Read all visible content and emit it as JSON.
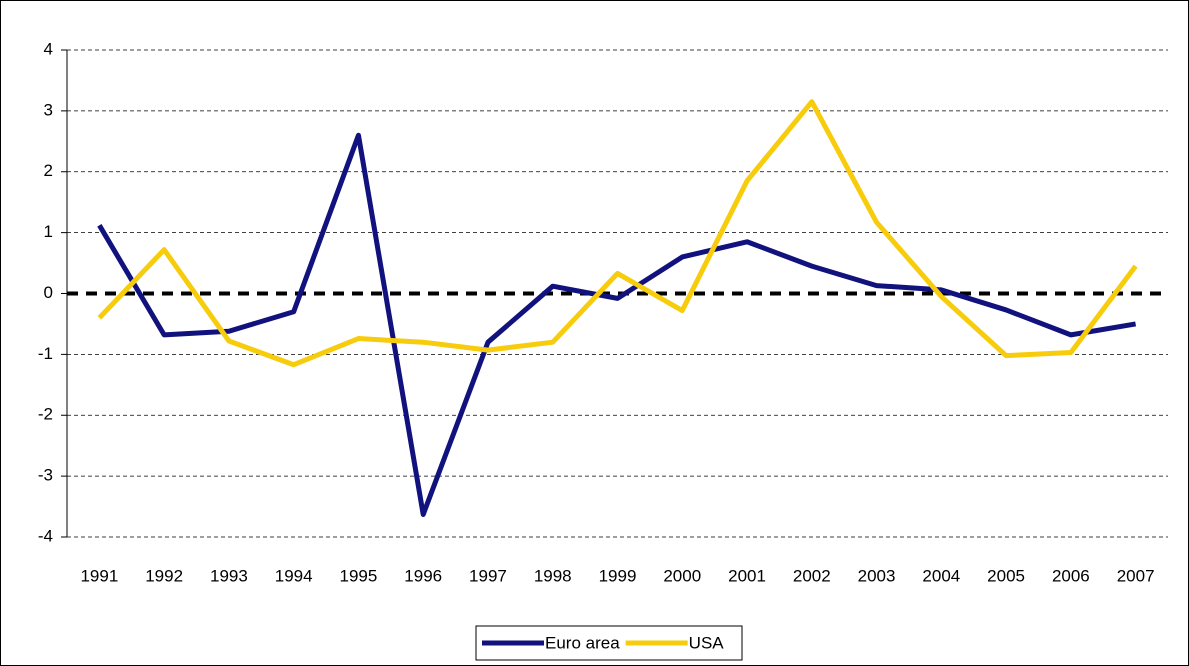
{
  "chart_data": {
    "type": "line",
    "categories": [
      "1991",
      "1992",
      "1993",
      "1994",
      "1995",
      "1996",
      "1997",
      "1998",
      "1999",
      "2000",
      "2001",
      "2002",
      "2003",
      "2004",
      "2005",
      "2006",
      "2007"
    ],
    "series": [
      {
        "name": "Euro area",
        "color": "#12127e",
        "values": [
          1.12,
          -0.68,
          -0.62,
          -0.3,
          2.6,
          -3.63,
          -0.8,
          0.12,
          -0.08,
          0.6,
          0.85,
          0.45,
          0.13,
          0.06,
          -0.27,
          -0.68,
          -0.5
        ]
      },
      {
        "name": "USA",
        "color": "#f7cc0c",
        "values": [
          -0.4,
          0.72,
          -0.78,
          -1.17,
          -0.74,
          -0.8,
          -0.93,
          -0.8,
          0.33,
          -0.28,
          1.85,
          3.15,
          1.17,
          -0.05,
          -1.02,
          -0.97,
          0.45
        ]
      }
    ],
    "ylim": [
      -4,
      4
    ],
    "yticks": [
      -4,
      -3,
      -2,
      -1,
      0,
      1,
      2,
      3,
      4
    ],
    "grid": true,
    "legend": "bottom"
  }
}
